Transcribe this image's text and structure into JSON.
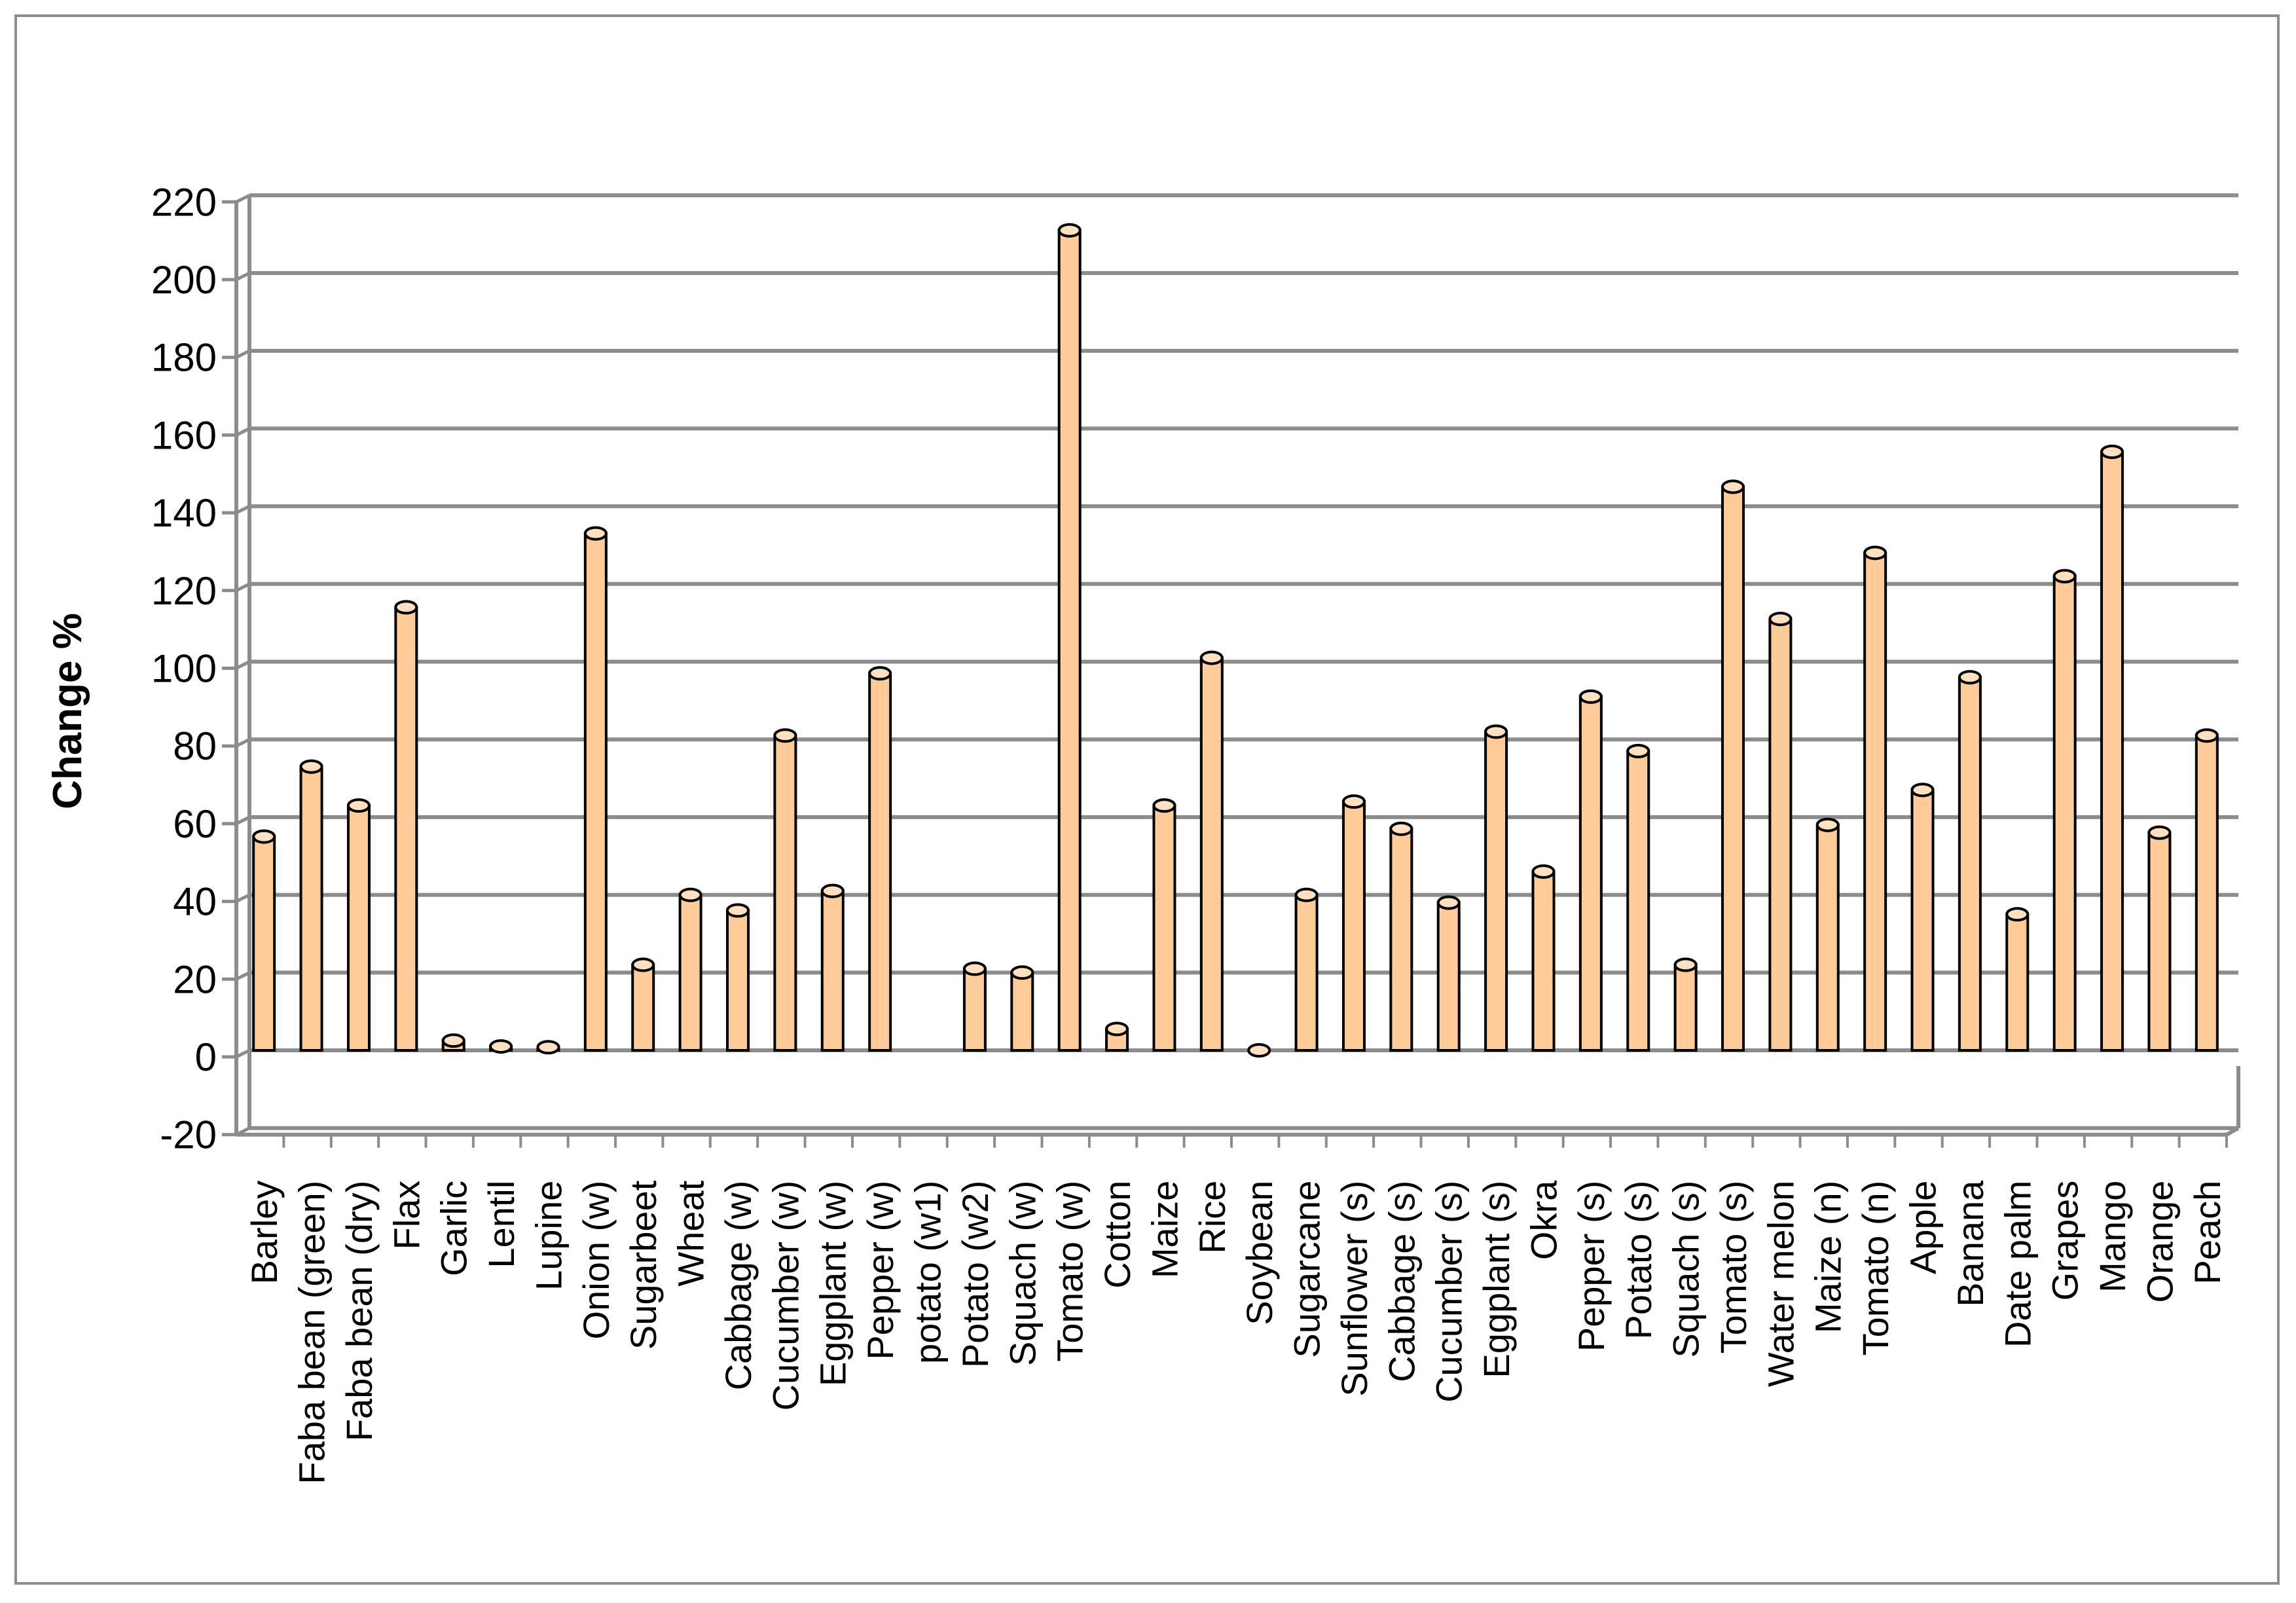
{
  "chart_data": {
    "type": "bar",
    "ylabel": "Change %",
    "ylim": [
      -20,
      220
    ],
    "yticks": [
      220,
      200,
      180,
      160,
      140,
      120,
      100,
      80,
      60,
      40,
      20,
      0,
      -20
    ],
    "grid": true,
    "bar_color": "#ffcc99",
    "categories": [
      "Barley",
      "Faba bean (green)",
      "Faba bean (dry)",
      "Flax",
      "Garlic",
      "Lentil",
      "Lupine",
      "Onion (w)",
      "Sugarbeet",
      "Wheat",
      "Cabbage (w)",
      "Cucumber (w)",
      "Eggplant (w)",
      "Pepper (w)",
      "potato (w1)",
      "Potato (w2)",
      "Squach (w)",
      "Tomato (w)",
      "Cotton",
      "Maize",
      "Rice",
      "Soybean",
      "Sugarcane",
      "Sunflower (s)",
      "Cabbage (s)",
      "Cucumber (s)",
      "Eggplant (s)",
      "Okra",
      "Pepper (s)",
      "Potato (s)",
      "Squach (s)",
      "Tomato (s)",
      "Water melon",
      "Maize (n)",
      "Tomato (n)",
      "Apple",
      "Banana",
      "Date palm",
      "Grapes",
      "Mango",
      "Orange",
      "Peach"
    ],
    "values": [
      55,
      73,
      63,
      114,
      2.5,
      1,
      0.8,
      133,
      22,
      40,
      36,
      81,
      41,
      97,
      0,
      21,
      20,
      211,
      5.5,
      63,
      101,
      0,
      40,
      64,
      57,
      38,
      82,
      46,
      91,
      77,
      22,
      145,
      111,
      58,
      128,
      67,
      96,
      35,
      122,
      154,
      56,
      81
    ]
  }
}
